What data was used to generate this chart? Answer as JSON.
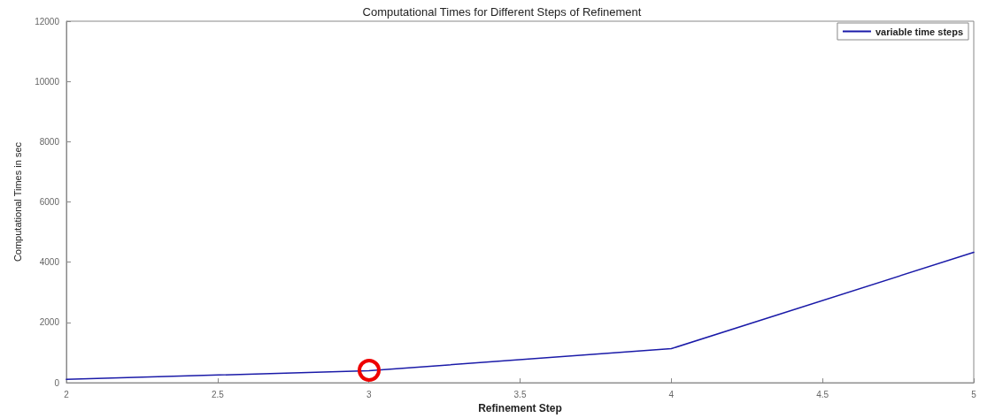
{
  "chart_data": {
    "type": "line",
    "title": "Computational Times for Different Steps of Refinement",
    "xlabel": "Refinement Step",
    "ylabel": "Computational Times in sec",
    "x": [
      2,
      3,
      4,
      5
    ],
    "series": [
      {
        "name": "variable time steps",
        "color": "#1a1aa8",
        "values": [
          110,
          400,
          1130,
          4330
        ]
      }
    ],
    "xlim": [
      2,
      5
    ],
    "xticks": [
      2,
      2.5,
      3,
      3.5,
      4,
      4.5,
      5
    ],
    "ylim": [
      0,
      12000
    ],
    "yticks": [
      0,
      2000,
      4000,
      6000,
      8000,
      10000,
      12000
    ],
    "grid": false,
    "legend": "top right",
    "marker": "none",
    "line_style": "solid"
  }
}
